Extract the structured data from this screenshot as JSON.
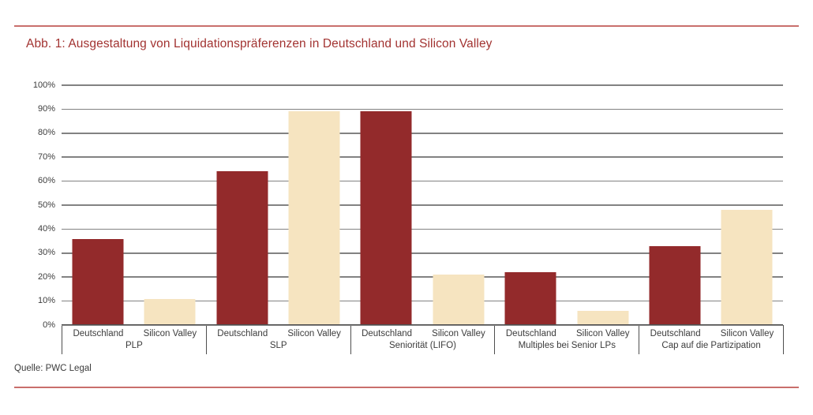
{
  "page": {
    "title": "Abb. 1: Ausgestaltung von Liquidationspräferenzen in Deutschland und Silicon Valley",
    "source": "Quelle: PWC Legal"
  },
  "colors": {
    "title_text": "#A23331",
    "rule": "#C96F6C",
    "gridline": "#828282",
    "axis_line": "#4F4F4F",
    "label_text": "#3C3C3C",
    "deutschland_bar": "#932A2B",
    "silicon_valley_bar": "#F6E4C0"
  },
  "chart_data": {
    "type": "bar",
    "title": "Abb. 1: Ausgestaltung von Liquidationspräferenzen in Deutschland und Silicon Valley",
    "categories": [
      "PLP",
      "SLP",
      "Seniorität (LIFO)",
      "Multiples bei Senior LPs",
      "Cap auf die Partizipation"
    ],
    "series": [
      {
        "name": "Deutschland",
        "color": "#932A2B",
        "values": [
          36,
          64,
          89,
          22,
          33
        ]
      },
      {
        "name": "Silicon Valley",
        "color": "#F6E4C0",
        "values": [
          11,
          89,
          21,
          6,
          48
        ]
      }
    ],
    "y_ticks": [
      "100%",
      "90%",
      "80%",
      "70%",
      "60%",
      "50%",
      "40%",
      "30%",
      "20%",
      "10%",
      "0%"
    ],
    "ylim": [
      0,
      100
    ],
    "unit": "%",
    "grid": true,
    "legend_position": "none",
    "xlabel": "",
    "ylabel": "",
    "source": "Quelle: PWC Legal"
  }
}
